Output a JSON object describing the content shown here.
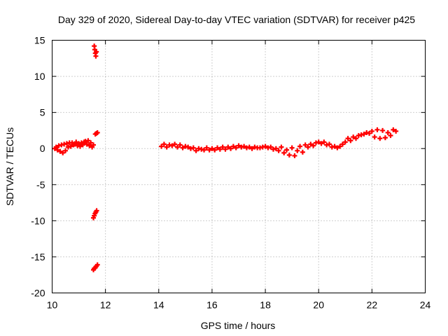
{
  "chart_data": {
    "type": "scatter",
    "title": "Day 329 of 2020, Sidereal Day-to-day VTEC variation (SDTVAR) for receiver p425",
    "xlabel": "GPS time / hours",
    "ylabel": "SDTVAR / TECUs",
    "xlim": [
      10,
      24
    ],
    "ylim": [
      -20,
      15
    ],
    "xticks": [
      "10",
      "12",
      "14",
      "16",
      "18",
      "20",
      "22",
      "24"
    ],
    "yticks": [
      "15",
      "10",
      "5",
      "0",
      "-5",
      "-10",
      "-15",
      "-20"
    ],
    "grid": true,
    "marker": "+",
    "color": "#ff0000",
    "series": [
      {
        "name": "SDTVAR",
        "points": [
          [
            10.1,
            0.0
          ],
          [
            10.15,
            0.2
          ],
          [
            10.2,
            -0.2
          ],
          [
            10.25,
            0.4
          ],
          [
            10.3,
            -0.4
          ],
          [
            10.35,
            0.5
          ],
          [
            10.4,
            -0.6
          ],
          [
            10.45,
            0.6
          ],
          [
            10.5,
            -0.3
          ],
          [
            10.55,
            0.7
          ],
          [
            10.6,
            0.2
          ],
          [
            10.65,
            0.8
          ],
          [
            10.7,
            0.3
          ],
          [
            10.75,
            0.8
          ],
          [
            10.8,
            0.5
          ],
          [
            10.85,
            0.6
          ],
          [
            10.9,
            0.9
          ],
          [
            10.95,
            0.4
          ],
          [
            11.0,
            0.7
          ],
          [
            11.05,
            0.3
          ],
          [
            11.1,
            0.8
          ],
          [
            11.15,
            0.5
          ],
          [
            11.2,
            0.9
          ],
          [
            11.25,
            1.0
          ],
          [
            11.3,
            0.6
          ],
          [
            11.35,
            1.1
          ],
          [
            11.4,
            0.4
          ],
          [
            11.45,
            0.8
          ],
          [
            11.5,
            0.2
          ],
          [
            11.55,
            0.5
          ],
          [
            11.58,
            14.2
          ],
          [
            11.6,
            13.7
          ],
          [
            11.62,
            13.2
          ],
          [
            11.64,
            12.8
          ],
          [
            11.66,
            13.4
          ],
          [
            11.62,
            2.0
          ],
          [
            11.66,
            2.1
          ],
          [
            11.7,
            2.2
          ],
          [
            11.55,
            -9.6
          ],
          [
            11.58,
            -9.3
          ],
          [
            11.61,
            -9.0
          ],
          [
            11.64,
            -8.8
          ],
          [
            11.67,
            -8.6
          ],
          [
            11.55,
            -16.8
          ],
          [
            11.58,
            -16.6
          ],
          [
            11.62,
            -16.5
          ],
          [
            11.66,
            -16.3
          ],
          [
            11.7,
            -16.1
          ],
          [
            14.1,
            0.3
          ],
          [
            14.2,
            0.6
          ],
          [
            14.3,
            0.2
          ],
          [
            14.4,
            0.5
          ],
          [
            14.5,
            0.4
          ],
          [
            14.6,
            0.6
          ],
          [
            14.7,
            0.2
          ],
          [
            14.8,
            0.5
          ],
          [
            14.9,
            0.1
          ],
          [
            15.0,
            0.3
          ],
          [
            15.1,
            0.2
          ],
          [
            15.2,
            0.0
          ],
          [
            15.3,
            0.1
          ],
          [
            15.4,
            -0.3
          ],
          [
            15.5,
            0.0
          ],
          [
            15.6,
            -0.1
          ],
          [
            15.7,
            -0.2
          ],
          [
            15.8,
            0.1
          ],
          [
            15.9,
            -0.2
          ],
          [
            16.0,
            0.0
          ],
          [
            16.1,
            -0.2
          ],
          [
            16.2,
            0.1
          ],
          [
            16.3,
            -0.1
          ],
          [
            16.4,
            0.2
          ],
          [
            16.5,
            -0.1
          ],
          [
            16.6,
            0.2
          ],
          [
            16.7,
            0.0
          ],
          [
            16.8,
            0.3
          ],
          [
            16.9,
            0.1
          ],
          [
            17.0,
            0.4
          ],
          [
            17.1,
            0.2
          ],
          [
            17.2,
            0.3
          ],
          [
            17.3,
            0.1
          ],
          [
            17.4,
            0.2
          ],
          [
            17.5,
            0.0
          ],
          [
            17.6,
            0.2
          ],
          [
            17.7,
            0.1
          ],
          [
            17.8,
            0.1
          ],
          [
            17.9,
            0.2
          ],
          [
            18.0,
            0.3
          ],
          [
            18.1,
            0.1
          ],
          [
            18.2,
            0.2
          ],
          [
            18.3,
            -0.1
          ],
          [
            18.4,
            0.0
          ],
          [
            18.5,
            -0.3
          ],
          [
            18.6,
            0.2
          ],
          [
            18.7,
            -0.6
          ],
          [
            18.8,
            -0.2
          ],
          [
            18.9,
            -0.9
          ],
          [
            19.0,
            0.1
          ],
          [
            19.1,
            -1.0
          ],
          [
            19.2,
            -0.3
          ],
          [
            19.3,
            0.3
          ],
          [
            19.4,
            -0.5
          ],
          [
            19.5,
            0.5
          ],
          [
            19.6,
            0.2
          ],
          [
            19.7,
            0.6
          ],
          [
            19.8,
            0.4
          ],
          [
            19.9,
            0.8
          ],
          [
            20.0,
            0.9
          ],
          [
            20.1,
            0.7
          ],
          [
            20.2,
            0.9
          ],
          [
            20.3,
            0.5
          ],
          [
            20.4,
            0.6
          ],
          [
            20.5,
            0.2
          ],
          [
            20.6,
            0.3
          ],
          [
            20.7,
            0.1
          ],
          [
            20.8,
            0.3
          ],
          [
            20.9,
            0.6
          ],
          [
            21.0,
            0.9
          ],
          [
            21.1,
            1.4
          ],
          [
            21.2,
            1.1
          ],
          [
            21.3,
            1.6
          ],
          [
            21.4,
            1.4
          ],
          [
            21.5,
            1.8
          ],
          [
            21.6,
            1.9
          ],
          [
            21.7,
            2.0
          ],
          [
            21.8,
            2.2
          ],
          [
            21.9,
            2.1
          ],
          [
            22.0,
            2.4
          ],
          [
            22.1,
            1.6
          ],
          [
            22.2,
            2.6
          ],
          [
            22.3,
            1.4
          ],
          [
            22.4,
            2.5
          ],
          [
            22.5,
            1.5
          ],
          [
            22.6,
            2.2
          ],
          [
            22.7,
            1.8
          ],
          [
            22.8,
            2.6
          ],
          [
            22.9,
            2.4
          ]
        ]
      }
    ]
  }
}
